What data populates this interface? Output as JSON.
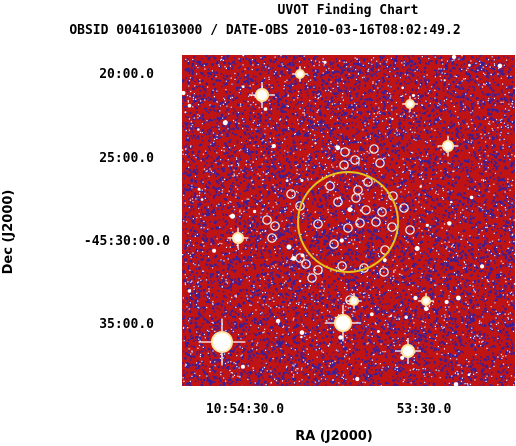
{
  "chart_data": {
    "type": "image",
    "title": "UVOT Finding Chart",
    "subtitle": "OBSID 00416103000 / DATE-OBS 2010-03-16T08:02:49.2",
    "xlabel": "RA (J2000)",
    "ylabel": "Dec (J2000)",
    "x_ticks": [
      "10:54:30.0",
      "53:30.0"
    ],
    "y_ticks": [
      "20:00.0",
      "25:00.0",
      "-45:30:00.0",
      "35:00.0"
    ],
    "colors": {
      "sky_background": "#c01414",
      "noise_blue": "#2020b0",
      "noise_white": "#f2f2ff",
      "source_circle": "#f4f4f4",
      "error_circle": "#e8c21c"
    },
    "annotations": {
      "error_circle": "yellow",
      "source_markers": "white circles"
    }
  }
}
